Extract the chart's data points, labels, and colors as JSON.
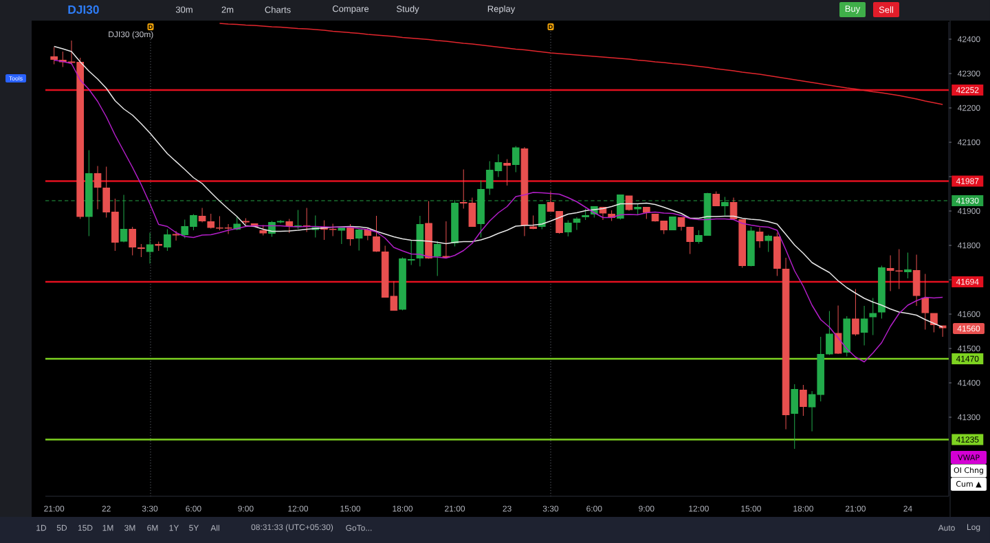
{
  "chart_data": {
    "type": "candlestick",
    "title": "DJI30",
    "subtitle": "DJI30 (30m)",
    "categories": [
      "21:00",
      null,
      null,
      null,
      null,
      null,
      "22",
      null,
      null,
      null,
      null,
      "3:30",
      null,
      null,
      null,
      null,
      "6:00",
      null,
      null,
      null,
      null,
      null,
      "9:00",
      null,
      null,
      null,
      null,
      null,
      "12:00",
      null,
      null,
      null,
      null,
      null,
      "15:00",
      null,
      null,
      null,
      null,
      null,
      "18:00",
      null,
      null,
      null,
      null,
      null,
      "21:00",
      null,
      null,
      null,
      null,
      null,
      "23",
      null,
      null,
      null,
      null,
      "3:30",
      null,
      null,
      null,
      null,
      "6:00",
      null,
      null,
      null,
      null,
      null,
      "9:00",
      null,
      null,
      null,
      null,
      null,
      "12:00",
      null,
      null,
      null,
      null,
      null,
      "15:00",
      null,
      null,
      null,
      null,
      null,
      "18:00",
      null,
      null,
      null,
      null,
      null,
      "21:00",
      null,
      null,
      null,
      null,
      null,
      "24",
      null,
      null,
      null,
      null
    ],
    "ohlc": [
      [
        42349,
        42377,
        42327,
        42341
      ],
      [
        42339,
        42364,
        42319,
        42334
      ],
      [
        42334,
        42396,
        42327,
        42332
      ],
      [
        42333,
        42346,
        41877,
        41884
      ],
      [
        41884,
        42077,
        41827,
        42009
      ],
      [
        42009,
        42031,
        41905,
        41969
      ],
      [
        41967,
        42029,
        41881,
        41897
      ],
      [
        41897,
        41936,
        41784,
        41809
      ],
      [
        41812,
        41947,
        41809,
        41847
      ],
      [
        41847,
        41854,
        41771,
        41795
      ],
      [
        41793,
        41804,
        41766,
        41791
      ],
      [
        41782,
        41837,
        41747,
        41802
      ],
      [
        41803,
        41811,
        41784,
        41800
      ],
      [
        41795,
        41847,
        41784,
        41831
      ],
      [
        41832,
        41842,
        41814,
        41830
      ],
      [
        41831,
        41875,
        41821,
        41855
      ],
      [
        41855,
        41891,
        41844,
        41887
      ],
      [
        41885,
        41909,
        41867,
        41871
      ],
      [
        41869,
        41892,
        41849,
        41852
      ],
      [
        41851,
        41885,
        41844,
        41850
      ],
      [
        41851,
        41862,
        41833,
        41850
      ],
      [
        41847,
        41882,
        41844,
        41862
      ],
      [
        41870,
        41879,
        41861,
        41868
      ],
      [
        41863,
        41864,
        41854,
        41855
      ],
      [
        41843,
        41859,
        41829,
        41836
      ],
      [
        41835,
        41871,
        41825,
        41867
      ],
      [
        41868,
        41874,
        41864,
        41870
      ],
      [
        41869,
        41877,
        41836,
        41857
      ],
      [
        41855,
        41903,
        41847,
        41857
      ],
      [
        41857,
        41909,
        41839,
        41855
      ],
      [
        41846,
        41887,
        41823,
        41852
      ],
      [
        41853,
        41873,
        41816,
        41847
      ],
      [
        41847,
        41863,
        41827,
        41846
      ],
      [
        41844,
        41854,
        41804,
        41853
      ],
      [
        41852,
        41862,
        41799,
        41819
      ],
      [
        41821,
        41848,
        41785,
        41845
      ],
      [
        41845,
        41851,
        41815,
        41829
      ],
      [
        41825,
        41886,
        41781,
        41783
      ],
      [
        41781,
        41799,
        41649,
        41649
      ],
      [
        41652,
        41696,
        41611,
        41611
      ],
      [
        41614,
        41765,
        41611,
        41761
      ],
      [
        41757,
        41814,
        41743,
        41759
      ],
      [
        41763,
        41886,
        41739,
        41861
      ],
      [
        41864,
        41929,
        41761,
        41763
      ],
      [
        41769,
        41813,
        41711,
        41803
      ],
      [
        41768,
        41870,
        41763,
        41765
      ],
      [
        41807,
        41932,
        41797,
        41923
      ],
      [
        41925,
        42021,
        41907,
        41923
      ],
      [
        41923,
        41939,
        41854,
        41855
      ],
      [
        41863,
        41989,
        41823,
        41963
      ],
      [
        41966,
        42045,
        41947,
        42019
      ],
      [
        42017,
        42065,
        41999,
        42041
      ],
      [
        42039,
        42051,
        41974,
        42033
      ],
      [
        42035,
        42089,
        42013,
        42084
      ],
      [
        42081,
        42086,
        41827,
        41859
      ],
      [
        41854,
        41887,
        41847,
        41849
      ],
      [
        41855,
        41919,
        41847,
        41919
      ],
      [
        41925,
        41957,
        41899,
        41899
      ],
      [
        41899,
        41899,
        41834,
        41837
      ],
      [
        41839,
        41873,
        41826,
        41865
      ],
      [
        41867,
        41882,
        41845,
        41877
      ],
      [
        41883,
        41907,
        41874,
        41887
      ],
      [
        41891,
        41913,
        41881,
        41913
      ],
      [
        41911,
        41912,
        41874,
        41894
      ],
      [
        41891,
        41902,
        41871,
        41881
      ],
      [
        41879,
        41947,
        41875,
        41947
      ],
      [
        41944,
        41945,
        41901,
        41904
      ],
      [
        41906,
        41921,
        41889,
        41911
      ],
      [
        41911,
        41912,
        41877,
        41896
      ],
      [
        41891,
        41892,
        41869,
        41871
      ],
      [
        41871,
        41872,
        41833,
        41845
      ],
      [
        41845,
        41883,
        41844,
        41883
      ],
      [
        41881,
        41882,
        41843,
        41855
      ],
      [
        41853,
        41854,
        41775,
        41811
      ],
      [
        41811,
        41844,
        41805,
        41829
      ],
      [
        41829,
        41953,
        41829,
        41951
      ],
      [
        41949,
        41957,
        41914,
        41915
      ],
      [
        41915,
        41941,
        41887,
        41925
      ],
      [
        41925,
        41939,
        41877,
        41877
      ],
      [
        41875,
        41876,
        41735,
        41741
      ],
      [
        41741,
        41854,
        41739,
        41842
      ],
      [
        41839,
        41852,
        41793,
        41813
      ],
      [
        41814,
        41831,
        41781,
        41827
      ],
      [
        41825,
        41837,
        41711,
        41733
      ],
      [
        41731,
        41764,
        41265,
        41307
      ],
      [
        41311,
        41396,
        41208,
        41381
      ],
      [
        41379,
        41394,
        41304,
        41331
      ],
      [
        41330,
        41376,
        41259,
        41366
      ],
      [
        41366,
        41534,
        41346,
        41483
      ],
      [
        41484,
        41609,
        41481,
        41542
      ],
      [
        41544,
        41625,
        41484,
        41486
      ],
      [
        41489,
        41594,
        41477,
        41586
      ],
      [
        41586,
        41673,
        41537,
        41542
      ],
      [
        41547,
        41624,
        41509,
        41586
      ],
      [
        41592,
        41647,
        41539,
        41602
      ],
      [
        41606,
        41741,
        41587,
        41735
      ],
      [
        41733,
        41771,
        41667,
        41727
      ],
      [
        41726,
        41789,
        41673,
        41725
      ],
      [
        41723,
        41779,
        41704,
        41729
      ],
      [
        41727,
        41773,
        41624,
        41654
      ],
      [
        41647,
        41717,
        41555,
        41604
      ],
      [
        41602,
        41603,
        41547,
        41569
      ],
      [
        41566,
        41567,
        41534,
        41560
      ]
    ],
    "colors": [
      "#e8504f",
      "#e8504f",
      "#e8504f",
      "#e8504f",
      "#22ab4b",
      "#e8504f",
      "#e8504f",
      "#e8504f",
      "#22ab4b",
      "#e8504f",
      "#e8504f",
      "#22ab4b",
      "#e8504f",
      "#22ab4b",
      "#e8504f",
      "#22ab4b",
      "#22ab4b",
      "#e8504f",
      "#e8504f",
      "#e8504f",
      "#e8504f",
      "#22ab4b",
      "#e8504f",
      "#e8504f",
      "#e8504f",
      "#22ab4b",
      "#22ab4b",
      "#e8504f",
      "#22ab4b",
      "#e8504f",
      "#22ab4b",
      "#e8504f",
      "#e8504f",
      "#22ab4b",
      "#e8504f",
      "#22ab4b",
      "#e8504f",
      "#e8504f",
      "#e8504f",
      "#e8504f",
      "#22ab4b",
      "#22ab4b",
      "#22ab4b",
      "#e8504f",
      "#22ab4b",
      "#e8504f",
      "#22ab4b",
      "#e8504f",
      "#e8504f",
      "#22ab4b",
      "#22ab4b",
      "#22ab4b",
      "#e8504f",
      "#22ab4b",
      "#e8504f",
      "#e8504f",
      "#22ab4b",
      "#e8504f",
      "#e8504f",
      "#22ab4b",
      "#22ab4b",
      "#22ab4b",
      "#22ab4b",
      "#e8504f",
      "#e8504f",
      "#22ab4b",
      "#e8504f",
      "#22ab4b",
      "#e8504f",
      "#e8504f",
      "#e8504f",
      "#22ab4b",
      "#e8504f",
      "#e8504f",
      "#22ab4b",
      "#22ab4b",
      "#e8504f",
      "#22ab4b",
      "#e8504f",
      "#e8504f",
      "#22ab4b",
      "#e8504f",
      "#22ab4b",
      "#e8504f",
      "#e8504f",
      "#22ab4b",
      "#e8504f",
      "#22ab4b",
      "#22ab4b",
      "#22ab4b",
      "#e8504f",
      "#22ab4b",
      "#e8504f",
      "#22ab4b",
      "#22ab4b",
      "#22ab4b",
      "#e8504f",
      "#e8504f",
      "#22ab4b",
      "#e8504f",
      "#e8504f",
      "#e8504f",
      "#e8504f"
    ],
    "series": [
      {
        "type": "line",
        "color": "#e8e8e8",
        "values": [
          42379,
          42372,
          42364,
          42334,
          42307,
          42284,
          42257,
          42221,
          42197,
          42179,
          42154,
          42127,
          42097,
          42067,
          42044,
          42021,
          41997,
          41980,
          41954,
          41929,
          41906,
          41884,
          41857,
          41855,
          41847,
          41841,
          41841,
          41842,
          41844,
          41847,
          41849,
          41851,
          41853,
          41854,
          41855,
          41854,
          41851,
          41841,
          41833,
          41825,
          41819,
          41815,
          41814,
          41812,
          41809,
          41805,
          41809,
          41811,
          41811,
          41816,
          41824,
          41835,
          41844,
          41856,
          41858,
          41859,
          41862,
          41871,
          41881,
          41891,
          41895,
          41901,
          41904,
          41907,
          41913,
          41921,
          41921,
          41921,
          41923,
          41919,
          41911,
          41902,
          41893,
          41879,
          41879,
          41884,
          41884,
          41885,
          41885,
          41879,
          41876,
          41874,
          41869,
          41862,
          41832,
          41801,
          41777,
          41750,
          41735,
          41721,
          41697,
          41677,
          41661,
          41646,
          41635,
          41626,
          41615,
          41606,
          41602,
          41597,
          41584,
          41573,
          41562
        ]
      },
      {
        "type": "line",
        "color": "#b31ec9",
        "values": [
          42339,
          42335,
          42329,
          42281,
          42254,
          42219,
          42174,
          42121,
          42074,
          42027,
          41977,
          41921,
          41861,
          41855,
          41837,
          41826,
          41823,
          41830,
          41831,
          41837,
          41844,
          41849,
          41855,
          41857,
          41857,
          41857,
          41857,
          41855,
          41854,
          41855,
          41855,
          41854,
          41853,
          41853,
          41853,
          41849,
          41846,
          41839,
          41821,
          41794,
          41784,
          41775,
          41774,
          41767,
          41766,
          41763,
          41771,
          41785,
          41806,
          41841,
          41871,
          41895,
          41913,
          41942,
          41947,
          41954,
          41953,
          41951,
          41949,
          41939,
          41927,
          41911,
          41895,
          41881,
          41881,
          41889,
          41890,
          41889,
          41895,
          41897,
          41894,
          41893,
          41887,
          41878,
          41875,
          41875,
          41877,
          41877,
          41875,
          41864,
          41859,
          41855,
          41853,
          41844,
          41787,
          41726,
          41681,
          41626,
          41584,
          41562,
          41531,
          41499,
          41475,
          41461,
          41487,
          41517,
          41564,
          41602,
          41626,
          41639,
          41649,
          41647,
          41649
        ]
      },
      {
        "type": "line",
        "color": "#e3262d",
        "values": [
          null,
          null,
          null,
          null,
          null,
          null,
          null,
          null,
          null,
          null,
          null,
          null,
          null,
          null,
          null,
          null,
          null,
          null,
          null,
          42446,
          42444,
          42443,
          42441,
          42440,
          42438,
          42436,
          42435,
          42433,
          42431,
          42430,
          42428,
          42426,
          42423,
          42421,
          42419,
          42417,
          42414,
          42412,
          42410,
          42408,
          42405,
          42403,
          42401,
          42399,
          42396,
          42394,
          42391,
          42388,
          42386,
          42383,
          42380,
          42377,
          42374,
          42371,
          42369,
          42366,
          42363,
          42360,
          42358,
          42356,
          42354,
          42352,
          42350,
          42348,
          42346,
          42344,
          42342,
          42339,
          42337,
          42334,
          42332,
          42329,
          42327,
          42324,
          42321,
          42318,
          42314,
          42311,
          42308,
          42304,
          42301,
          42298,
          42294,
          42290,
          42286,
          42282,
          42278,
          42274,
          42270,
          42266,
          42262,
          42258,
          42255,
          42251,
          42247,
          42244,
          42240,
          42236,
          42231,
          42226,
          42220,
          42215,
          42210
        ]
      }
    ],
    "ylim": [
      41070,
      42450
    ],
    "yticks": [
      41300,
      41400,
      41500,
      41600,
      {
        "value": 41700,
        "label": null
      },
      41800,
      41900,
      {
        "value": 42000,
        "label": null
      },
      42100,
      42200,
      42300,
      42400
    ],
    "ref_lines": [
      {
        "axis": "y",
        "value": 42252,
        "label": "42252",
        "color": "#e3101f"
      },
      {
        "axis": "y",
        "value": 41987,
        "label": "41987",
        "color": "#e3101f"
      },
      {
        "axis": "y",
        "value": 41930,
        "label": "41930",
        "color": "#25a244",
        "line_style": "dashed"
      },
      {
        "axis": "y",
        "value": 41694,
        "label": "41694",
        "color": "#e3101f"
      },
      {
        "axis": "y",
        "value": 41470,
        "label": "41470",
        "color": "#7ed321"
      },
      {
        "axis": "y",
        "value": 41235,
        "label": "41235",
        "color": "#7ed321"
      }
    ],
    "annotations": [
      "30m",
      "2m",
      "Charts",
      "Compare",
      "Study",
      "Replay",
      "Buy",
      "Sell",
      "Tools",
      "1D",
      "5D",
      "15D",
      "1M",
      "3M",
      "6M",
      "1Y",
      "5Y",
      "All",
      "08:31:33 (UTC+05:30)",
      "GoTo...",
      "Auto",
      "Log",
      "VWAP",
      "OI Chng",
      "Cum ▲",
      "41560",
      "D",
      "D"
    ]
  }
}
